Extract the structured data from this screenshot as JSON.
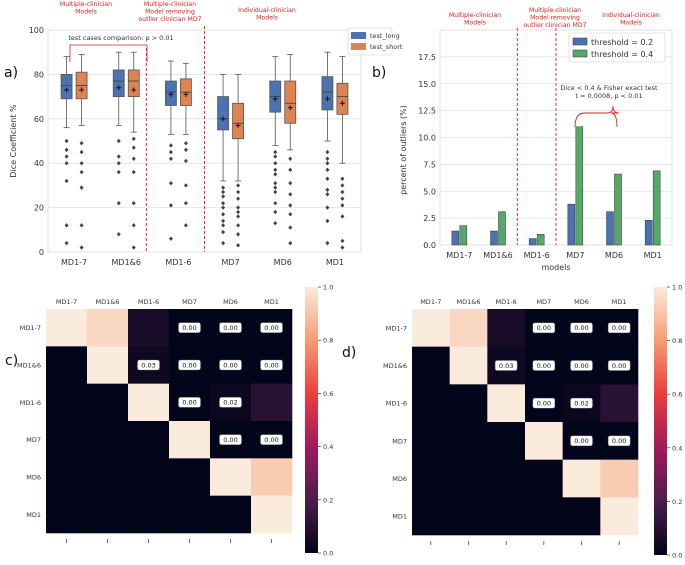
{
  "panels": {
    "a": "a)",
    "b": "b)",
    "c": "c)",
    "d": "d)"
  },
  "annotations": {
    "multi_models": "Multiple-clinician\nModels",
    "multi_removing": "Multiple-clinician\nModel removing\noutlier clinician MD7",
    "multi_removing_b": "Multiple-clinician\nModel removing\noutlier clinician MD7",
    "individual": "Individual-clinician\nModels",
    "test_cases": "test cases comparison: p > 0.01",
    "fisher": "Dice < 0.4 & Fisher exact test\nt = 0.0008, p < 0.01"
  },
  "colors": {
    "test_long": "#4c72b0",
    "test_short": "#dd8452",
    "thr02": "#4c72b0",
    "thr04": "#55a868",
    "annot_red": "#e0201b",
    "heat_low": "#03051a",
    "heat_high": "#faebdd"
  },
  "chart_data": [
    {
      "type": "box",
      "ylabel": "Dice Coefficient %",
      "ylim": [
        0,
        100
      ],
      "yticks": [
        0,
        20,
        40,
        60,
        80,
        100
      ],
      "categories": [
        "MD1-7",
        "MD1&6",
        "MD1-6",
        "MD7",
        "MD6",
        "MD1"
      ],
      "legend": {
        "position": "top-right",
        "entries": [
          "test_long",
          "test_short"
        ]
      },
      "series": [
        {
          "name": "test_long",
          "boxes": [
            {
              "whislo": 56,
              "q1": 69,
              "med": 75,
              "q3": 80,
              "whishi": 88,
              "mean": 73
            },
            {
              "whislo": 57,
              "q1": 70,
              "med": 77,
              "q3": 82,
              "whishi": 90,
              "mean": 74
            },
            {
              "whislo": 53,
              "q1": 66,
              "med": 72,
              "q3": 77,
              "whishi": 86,
              "mean": 71
            },
            {
              "whislo": 32,
              "q1": 55,
              "med": 60,
              "q3": 70,
              "whishi": 80,
              "mean": 60
            },
            {
              "whislo": 48,
              "q1": 63,
              "med": 70,
              "q3": 77,
              "whishi": 88,
              "mean": 69
            },
            {
              "whislo": 50,
              "q1": 64,
              "med": 72,
              "q3": 79,
              "whishi": 90,
              "mean": 69
            }
          ]
        },
        {
          "name": "test_short",
          "boxes": [
            {
              "whislo": 57,
              "q1": 69,
              "med": 75,
              "q3": 81,
              "whishi": 89,
              "mean": 73
            },
            {
              "whislo": 54,
              "q1": 70,
              "med": 77,
              "q3": 82,
              "whishi": 90,
              "mean": 73
            },
            {
              "whislo": 53,
              "q1": 66,
              "med": 72,
              "q3": 78,
              "whishi": 85,
              "mean": 71
            },
            {
              "whislo": 32,
              "q1": 51,
              "med": 58,
              "q3": 67,
              "whishi": 80,
              "mean": 57
            },
            {
              "whislo": 46,
              "q1": 58,
              "med": 67,
              "q3": 77,
              "whishi": 89,
              "mean": 65
            },
            {
              "whislo": 40,
              "q1": 62,
              "med": 70,
              "q3": 76,
              "whishi": 88,
              "mean": 67
            }
          ]
        }
      ],
      "outliers": [
        [
          [
            50,
            46,
            43,
            40,
            32,
            12,
            4
          ],
          [
            49,
            45,
            40,
            36,
            29,
            12,
            2
          ]
        ],
        [
          [
            50,
            43,
            40,
            36,
            22,
            8
          ],
          [
            51,
            47,
            42,
            36,
            22,
            12,
            2
          ]
        ],
        [
          [
            48,
            45,
            42,
            31,
            21,
            6
          ],
          [
            49,
            46,
            41,
            30,
            22,
            12
          ]
        ],
        [
          [
            29,
            27,
            25,
            22,
            20,
            17,
            14,
            12,
            9,
            4
          ],
          [
            30,
            27,
            24,
            20,
            18,
            16,
            12,
            8,
            3
          ]
        ],
        [
          [
            45,
            43,
            40,
            37,
            35,
            31,
            29,
            27,
            22,
            18,
            13
          ],
          [
            42,
            37,
            31,
            26,
            21,
            17,
            11,
            4
          ]
        ],
        [
          [
            45,
            42,
            40,
            37,
            33,
            28,
            26,
            20,
            14,
            4
          ],
          [
            33,
            30,
            27,
            24,
            21,
            16,
            5,
            2
          ]
        ]
      ]
    },
    {
      "type": "bar",
      "xlabel": "models",
      "ylabel": "percent of outliers (%)",
      "ylim": [
        0,
        20
      ],
      "yticks": [
        0.0,
        2.5,
        5.0,
        7.5,
        10.0,
        12.5,
        15.0,
        17.5
      ],
      "ytick_labels": [
        "0.0",
        "2.5",
        "5.0",
        "7.5",
        "10.0",
        "12.5",
        "15.0",
        "17.5"
      ],
      "categories": [
        "MD1-7",
        "MD1&6",
        "MD1-6",
        "MD7",
        "MD6",
        "MD1"
      ],
      "legend": {
        "position": "top-right",
        "entries": [
          "threshold = 0.2",
          "threshold = 0.4"
        ]
      },
      "series": [
        {
          "name": "threshold = 0.2",
          "values": [
            1.3,
            1.3,
            0.6,
            3.8,
            3.1,
            2.3
          ]
        },
        {
          "name": "threshold = 0.4",
          "values": [
            1.8,
            3.1,
            1.0,
            11.0,
            6.6,
            6.9
          ]
        }
      ]
    },
    {
      "type": "heatmap",
      "labels": [
        "MD1-7",
        "MD1&6",
        "MD1-6",
        "MD7",
        "MD6",
        "MD1"
      ],
      "colorbar_ticks": [
        "0.0",
        "0.2",
        "0.4",
        "0.6",
        "0.8",
        "1.0"
      ],
      "values": [
        [
          1.0,
          0.95,
          0.06,
          0.0,
          0.0,
          0.0
        ],
        [
          null,
          1.0,
          0.03,
          0.0,
          0.0,
          0.0
        ],
        [
          null,
          null,
          1.0,
          0.0,
          0.02,
          0.1
        ],
        [
          null,
          null,
          null,
          1.0,
          0.0,
          0.0
        ],
        [
          null,
          null,
          null,
          null,
          1.0,
          0.92
        ],
        [
          null,
          null,
          null,
          null,
          null,
          1.0
        ]
      ],
      "annotated_cells": [
        {
          "r": 0,
          "c": 3,
          "text": "0.00"
        },
        {
          "r": 0,
          "c": 4,
          "text": "0.00"
        },
        {
          "r": 0,
          "c": 5,
          "text": "0.00"
        },
        {
          "r": 1,
          "c": 2,
          "text": "0.03"
        },
        {
          "r": 1,
          "c": 3,
          "text": "0.00"
        },
        {
          "r": 1,
          "c": 4,
          "text": "0.00"
        },
        {
          "r": 1,
          "c": 5,
          "text": "0.00"
        },
        {
          "r": 2,
          "c": 3,
          "text": "0.00"
        },
        {
          "r": 2,
          "c": 4,
          "text": "0.02"
        },
        {
          "r": 3,
          "c": 4,
          "text": "0.00"
        },
        {
          "r": 3,
          "c": 5,
          "text": "0.00"
        }
      ]
    },
    {
      "type": "heatmap",
      "labels": [
        "MD1-7",
        "MD1&6",
        "MD1-6",
        "MD7",
        "MD6",
        "MD1"
      ],
      "colorbar_ticks": [
        "0.0",
        "0.2",
        "0.4",
        "0.6",
        "0.8",
        "1.0"
      ],
      "values": [
        [
          1.0,
          0.95,
          0.06,
          0.0,
          0.0,
          0.0
        ],
        [
          null,
          1.0,
          0.03,
          0.0,
          0.0,
          0.0
        ],
        [
          null,
          null,
          1.0,
          0.0,
          0.02,
          0.1
        ],
        [
          null,
          null,
          null,
          1.0,
          0.0,
          0.0
        ],
        [
          null,
          null,
          null,
          null,
          1.0,
          0.92
        ],
        [
          null,
          null,
          null,
          null,
          null,
          1.0
        ]
      ],
      "annotated_cells": [
        {
          "r": 0,
          "c": 3,
          "text": "0.00"
        },
        {
          "r": 0,
          "c": 4,
          "text": "0.00"
        },
        {
          "r": 0,
          "c": 5,
          "text": "0.00"
        },
        {
          "r": 1,
          "c": 2,
          "text": "0.03"
        },
        {
          "r": 1,
          "c": 3,
          "text": "0.00"
        },
        {
          "r": 1,
          "c": 4,
          "text": "0.00"
        },
        {
          "r": 1,
          "c": 5,
          "text": "0.00"
        },
        {
          "r": 2,
          "c": 3,
          "text": "0.00"
        },
        {
          "r": 2,
          "c": 4,
          "text": "0.02"
        },
        {
          "r": 3,
          "c": 4,
          "text": "0.00"
        },
        {
          "r": 3,
          "c": 5,
          "text": "0.00"
        }
      ]
    }
  ]
}
